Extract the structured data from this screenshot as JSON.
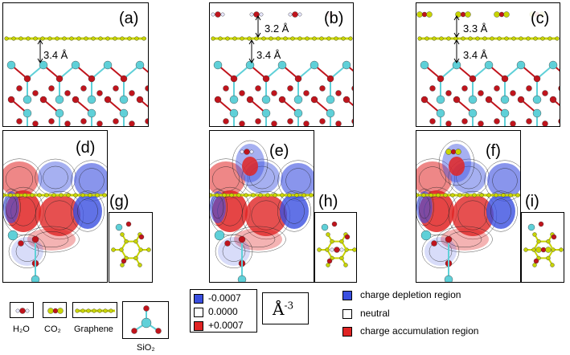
{
  "panels": {
    "a": {
      "label": "(a)",
      "d1": "3.4 Å"
    },
    "b": {
      "label": "(b)",
      "d1": "3.2 Å",
      "d2": "3.4 Å"
    },
    "c": {
      "label": "(c)",
      "d1": "3.3 Å",
      "d2": "3.4 Å"
    },
    "d": {
      "label": "(d)"
    },
    "e": {
      "label": "(e)"
    },
    "f": {
      "label": "(f)"
    },
    "g": {
      "label": "(g)"
    },
    "h": {
      "label": "(h)"
    },
    "i": {
      "label": "(i)"
    }
  },
  "molecule_legend": [
    {
      "key": "h2o",
      "caption": "H₂O"
    },
    {
      "key": "co2",
      "caption": "CO₂"
    },
    {
      "key": "graphene",
      "caption": "Graphene"
    },
    {
      "key": "sio2",
      "caption": "SiO₂"
    }
  ],
  "scale": {
    "values": [
      "-0.0007",
      "0.0000",
      "+0.0007"
    ],
    "colors": [
      "#3a4fe0",
      "#ffffff",
      "#e02424"
    ],
    "unit_base": "Å",
    "unit_exp": "-3"
  },
  "charge_key": [
    {
      "color": "#3a4fe0",
      "text": "charge depletion region"
    },
    {
      "color": "#ffffff",
      "text": "neutral"
    },
    {
      "color": "#e02424",
      "text": "charge accumulation region"
    }
  ],
  "colors": {
    "graphene": "#c8d400",
    "silicon": "#5fd0d8",
    "oxygen": "#c0141c",
    "hydrogen": "#e8e8ff",
    "co2_carbon": "#c8d400"
  }
}
